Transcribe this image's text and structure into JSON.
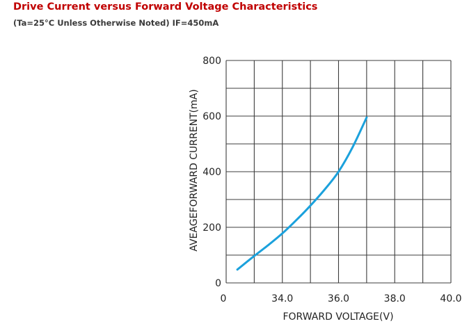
{
  "header": {
    "title": "Drive Current versus Forward Voltage Characteristics",
    "subtitle": "(Ta=25°C  Unless Otherwise Noted)  IF=450mA"
  },
  "chart_data": {
    "type": "line",
    "xlabel": "FORWARD VOLTAGE(V)",
    "ylabel": "AVEAGEFORWARD CURRENT(mA)",
    "x_ticks": [
      "0",
      "34.0",
      "36.0",
      "38.0",
      "40.0"
    ],
    "y_ticks": [
      "0",
      "200",
      "400",
      "600",
      "800"
    ],
    "xlim": [
      32.0,
      40.0
    ],
    "ylim": [
      0,
      800
    ],
    "x_grid": [
      32.0,
      33.0,
      34.0,
      35.0,
      36.0,
      37.0,
      38.0,
      39.0,
      40.0
    ],
    "y_grid": [
      0,
      100,
      200,
      300,
      400,
      500,
      600,
      700,
      800
    ],
    "grid": true,
    "series": [
      {
        "color": "#1ba1dc",
        "x": [
          32.4,
          33.0,
          33.5,
          34.0,
          34.5,
          35.0,
          35.5,
          36.0,
          36.5,
          37.0
        ],
        "y": [
          48,
          97,
          136,
          178,
          226,
          278,
          335,
          400,
          488,
          595
        ]
      }
    ]
  }
}
